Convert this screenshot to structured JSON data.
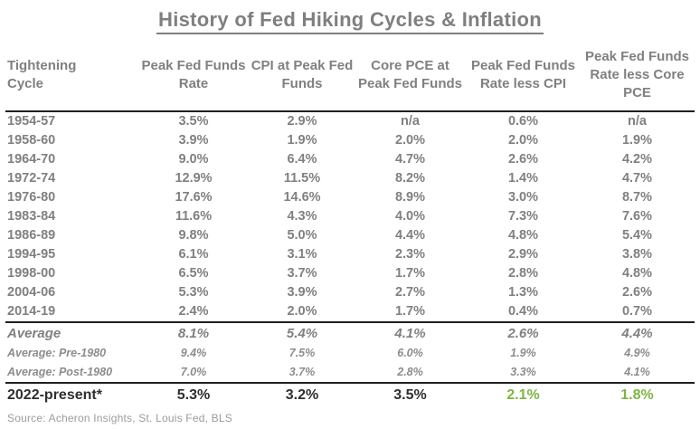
{
  "title": "History of Fed Hiking Cycles & Inflation",
  "source": "Source: Acheron Insights, St. Louis Fed, BLS",
  "colors": {
    "text_gray": "#808080",
    "dark_text": "#2e2e2e",
    "accent_green": "#7eb543",
    "rule_black": "#1f1f1f",
    "title_gray": "#7f7f7f"
  },
  "chart_data": {
    "type": "table",
    "title": "History of Fed Hiking Cycles & Inflation",
    "columns": [
      "Tightening Cycle",
      "Peak Fed Funds Rate",
      "CPI at Peak Fed Funds",
      "Core PCE at Peak Fed Funds",
      "Peak Fed Funds Rate less CPI",
      "Peak Fed Funds Rate less Core PCE"
    ],
    "rows": [
      {
        "label": "1954-57",
        "values": [
          "3.5%",
          "2.9%",
          "n/a",
          "0.6%",
          "n/a"
        ],
        "style": "data"
      },
      {
        "label": "1958-60",
        "values": [
          "3.9%",
          "1.9%",
          "2.0%",
          "2.0%",
          "1.9%"
        ],
        "style": "data"
      },
      {
        "label": "1964-70",
        "values": [
          "9.0%",
          "6.4%",
          "4.7%",
          "2.6%",
          "4.2%"
        ],
        "style": "data"
      },
      {
        "label": "1972-74",
        "values": [
          "12.9%",
          "11.5%",
          "8.2%",
          "1.4%",
          "4.7%"
        ],
        "style": "data"
      },
      {
        "label": "1976-80",
        "values": [
          "17.6%",
          "14.6%",
          "8.9%",
          "3.0%",
          "8.7%"
        ],
        "style": "data"
      },
      {
        "label": "1983-84",
        "values": [
          "11.6%",
          "4.3%",
          "4.0%",
          "7.3%",
          "7.6%"
        ],
        "style": "data"
      },
      {
        "label": "1986-89",
        "values": [
          "9.8%",
          "5.0%",
          "4.4%",
          "4.8%",
          "5.4%"
        ],
        "style": "data"
      },
      {
        "label": "1994-95",
        "values": [
          "6.1%",
          "3.1%",
          "2.3%",
          "2.9%",
          "3.8%"
        ],
        "style": "data"
      },
      {
        "label": "1998-00",
        "values": [
          "6.5%",
          "3.7%",
          "1.7%",
          "2.8%",
          "4.8%"
        ],
        "style": "data"
      },
      {
        "label": "2004-06",
        "values": [
          "5.3%",
          "3.9%",
          "2.7%",
          "1.3%",
          "2.6%"
        ],
        "style": "data"
      },
      {
        "label": "2014-19",
        "values": [
          "2.4%",
          "2.0%",
          "1.7%",
          "0.4%",
          "0.7%"
        ],
        "style": "data"
      },
      {
        "label": "Average",
        "values": [
          "8.1%",
          "5.4%",
          "4.1%",
          "2.6%",
          "4.4%"
        ],
        "style": "average"
      },
      {
        "label": "Average: Pre-1980",
        "values": [
          "9.4%",
          "7.5%",
          "6.0%",
          "1.9%",
          "4.9%"
        ],
        "style": "subaverage"
      },
      {
        "label": "Average: Post-1980",
        "values": [
          "7.0%",
          "3.7%",
          "2.8%",
          "3.3%",
          "4.1%"
        ],
        "style": "subaverage"
      },
      {
        "label": "2022-present*",
        "values": [
          "5.3%",
          "3.2%",
          "3.5%",
          "2.1%",
          "1.8%"
        ],
        "style": "current",
        "accent_indices": [
          3,
          4
        ]
      }
    ]
  }
}
